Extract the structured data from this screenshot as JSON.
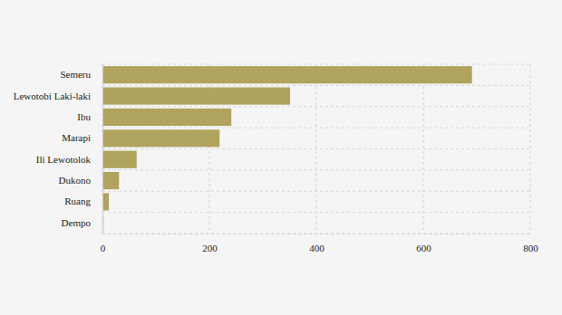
{
  "chart_data": {
    "type": "bar",
    "orientation": "horizontal",
    "categories": [
      "Semeru",
      "Lewotobi Laki-laki",
      "Ibu",
      "Marapi",
      "Ili Lewotolok",
      "Dukono",
      "Ruang",
      "Dempo"
    ],
    "values": [
      691,
      351,
      241,
      219,
      64,
      31,
      12,
      2
    ],
    "color": "#b0a35e",
    "xlim": [
      0,
      800
    ],
    "xticks": [
      0,
      200,
      400,
      600,
      800
    ],
    "grid": true
  }
}
